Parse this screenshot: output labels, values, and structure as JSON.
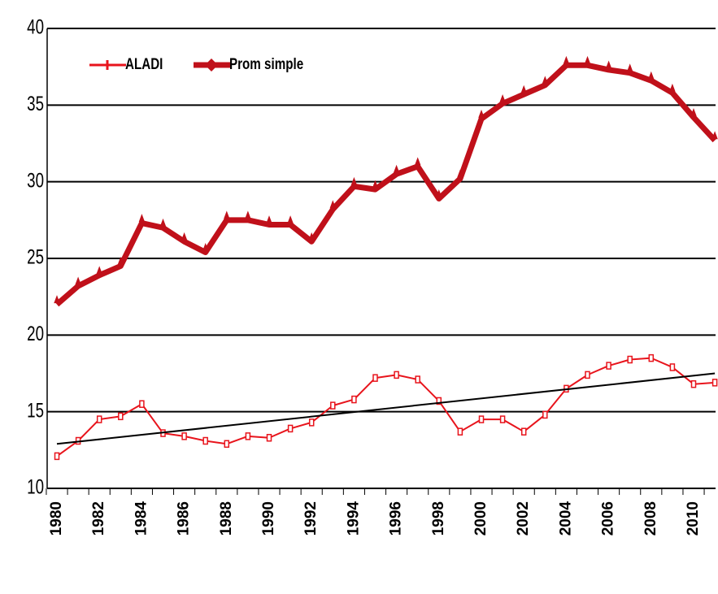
{
  "chart_data": {
    "type": "line",
    "categories": [
      "1980",
      null,
      "1982",
      null,
      "1984",
      null,
      "1986",
      null,
      "1988",
      null,
      "1990",
      null,
      "1992",
      null,
      "1994",
      null,
      "1996",
      null,
      "1998",
      null,
      "2000",
      null,
      "2002",
      null,
      "2004",
      null,
      "2006",
      null,
      "2008",
      null,
      "2010",
      null
    ],
    "series": [
      {
        "name": "ALADI",
        "color": "#e8141c",
        "values": [
          12.1,
          13.1,
          14.5,
          14.7,
          15.5,
          13.6,
          13.4,
          13.1,
          12.9,
          13.4,
          13.3,
          13.9,
          14.3,
          15.4,
          15.8,
          17.2,
          17.4,
          17.1,
          15.7,
          13.7,
          14.5,
          14.5,
          13.7,
          14.8,
          16.5,
          17.4,
          18.0,
          18.4,
          18.5,
          17.9,
          16.8,
          16.9
        ]
      },
      {
        "name": "Prom simple",
        "color": "#c0101a",
        "values": [
          22.0,
          23.2,
          23.9,
          24.5,
          27.3,
          27.0,
          26.1,
          25.4,
          27.5,
          27.5,
          27.2,
          27.2,
          26.1,
          28.2,
          29.7,
          29.5,
          30.5,
          31.0,
          28.9,
          30.2,
          34.1,
          35.1,
          35.7,
          36.3,
          37.6,
          37.6,
          37.3,
          37.1,
          36.6,
          35.8,
          34.2,
          32.7
        ]
      }
    ],
    "trend": {
      "color": "#000000",
      "start": 12.9,
      "end": 17.5
    },
    "ylim": [
      10,
      40
    ],
    "yticks": [
      10,
      15,
      20,
      25,
      30,
      35,
      40
    ],
    "grid": true
  }
}
